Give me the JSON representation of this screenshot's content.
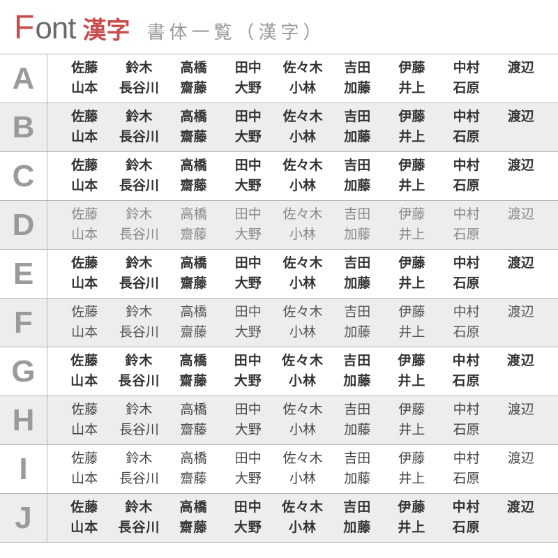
{
  "header": {
    "font_f": "F",
    "font_ont": "ont",
    "kanji_label": "漢字",
    "subtitle": "書体一覧（漢字）",
    "accent_color": "#c94b4b",
    "text_color": "#6a6a6a"
  },
  "names_line1": [
    "佐藤",
    "鈴木",
    "高橋",
    "田中",
    "佐々木",
    "吉田",
    "伊藤",
    "中村",
    "渡辺"
  ],
  "names_line2": [
    "山本",
    "長谷川",
    "齋藤",
    "大野",
    "小林",
    "加藤",
    "井上",
    "石原",
    ""
  ],
  "rows": [
    {
      "letter": "A",
      "bg": "bg-odd",
      "style": "style-A"
    },
    {
      "letter": "B",
      "bg": "bg-even",
      "style": "style-B"
    },
    {
      "letter": "C",
      "bg": "bg-odd",
      "style": "style-C"
    },
    {
      "letter": "D",
      "bg": "bg-even",
      "style": "style-D"
    },
    {
      "letter": "E",
      "bg": "bg-odd",
      "style": "style-E"
    },
    {
      "letter": "F",
      "bg": "bg-even",
      "style": "style-F"
    },
    {
      "letter": "G",
      "bg": "bg-odd",
      "style": "style-G"
    },
    {
      "letter": "H",
      "bg": "bg-even",
      "style": "style-H"
    },
    {
      "letter": "I",
      "bg": "bg-odd",
      "style": "style-I"
    },
    {
      "letter": "J",
      "bg": "bg-even",
      "style": "style-J"
    }
  ],
  "colors": {
    "border": "#b5b5b5",
    "row_odd": "#ffffff",
    "row_even": "#ededed",
    "letter_color": "#9a9a9a"
  }
}
